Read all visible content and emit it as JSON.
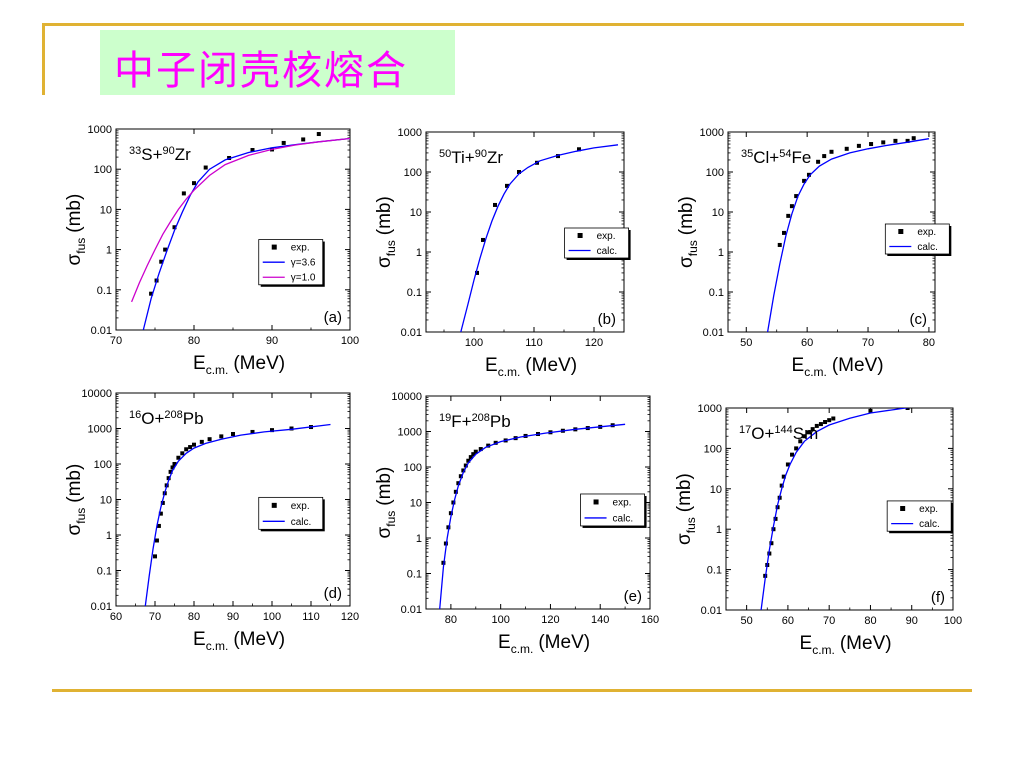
{
  "slide": {
    "title": "中子闭壳核熔合",
    "accent_color": "#e0b233",
    "title_bg": "#ccffcc",
    "title_color": "#ff00ff"
  },
  "chart_data": [
    {
      "type": "scatter",
      "panel": "(a)",
      "reaction": {
        "a1": "33",
        "s1": "S+",
        "a2": "90",
        "s2": "Zr"
      },
      "xlabel": "E",
      "xlabel_sub": "c.m.",
      "xlabel_unit": "(MeV)",
      "ylabel": "σ",
      "ylabel_sub": "fus",
      "ylabel_unit": "(mb)",
      "xlim": [
        70,
        100
      ],
      "xticks": [
        "70",
        "80",
        "90",
        "100"
      ],
      "ylim": [
        0.01,
        1000
      ],
      "log_y": true,
      "yticks": [
        "0.01",
        "0.1",
        "1",
        "10",
        "100",
        "1000"
      ],
      "legend": [
        "exp.",
        "γ=3.6",
        "γ=1.0"
      ],
      "legend_position": "right",
      "series": [
        {
          "name": "exp.",
          "kind": "points",
          "x": [
            74.5,
            75.2,
            75.8,
            76.3,
            77.5,
            78.7,
            80.0,
            81.5,
            84.5,
            87.5,
            90.0,
            91.5,
            94.0,
            96.0
          ],
          "y": [
            0.08,
            0.17,
            0.5,
            1.0,
            3.6,
            25,
            45,
            110,
            190,
            300,
            310,
            450,
            550,
            750
          ]
        },
        {
          "name": "γ=3.6",
          "kind": "line",
          "color": "#0000ff",
          "x": [
            73.5,
            74.5,
            75.5,
            76.5,
            77.5,
            78.5,
            79.5,
            80.5,
            82,
            84,
            87,
            90,
            93,
            96,
            100
          ],
          "y": [
            0.01,
            0.06,
            0.25,
            0.9,
            3,
            8.5,
            22,
            48,
            100,
            170,
            260,
            340,
            410,
            480,
            580
          ]
        },
        {
          "name": "γ=1.0",
          "kind": "line",
          "color": "#cc00cc",
          "x": [
            72,
            73,
            74,
            75,
            76,
            77,
            78,
            79,
            80,
            82,
            84,
            87,
            90,
            93,
            96,
            100
          ],
          "y": [
            0.05,
            0.15,
            0.4,
            1.0,
            2.4,
            5,
            10,
            18,
            30,
            70,
            130,
            220,
            310,
            400,
            480,
            580
          ]
        }
      ]
    },
    {
      "type": "scatter",
      "panel": "(b)",
      "reaction": {
        "a1": "50",
        "s1": "Ti+",
        "a2": "90",
        "s2": "Zr"
      },
      "xlabel": "E",
      "xlabel_sub": "c.m.",
      "xlabel_unit": "(MeV)",
      "ylabel": "σ",
      "ylabel_sub": "fus",
      "ylabel_unit": "(mb)",
      "xlim": [
        92,
        125
      ],
      "xticks": [
        "100",
        "110",
        "120"
      ],
      "ylim": [
        0.01,
        1000
      ],
      "log_y": true,
      "yticks": [
        "0.01",
        "0.1",
        "1",
        "10",
        "100",
        "1000"
      ],
      "legend": [
        "exp.",
        "calc."
      ],
      "legend_position": "right",
      "series": [
        {
          "name": "exp.",
          "kind": "points",
          "x": [
            100.5,
            101.5,
            103.5,
            105.5,
            107.5,
            110.5,
            114.0,
            117.5
          ],
          "y": [
            0.3,
            2.0,
            15,
            45,
            100,
            170,
            250,
            370
          ]
        },
        {
          "name": "calc.",
          "kind": "line",
          "color": "#0000ff",
          "x": [
            97.8,
            99,
            100,
            101,
            102,
            103,
            104,
            105,
            106,
            107.5,
            109,
            111,
            114,
            117,
            120,
            124
          ],
          "y": [
            0.01,
            0.05,
            0.2,
            0.7,
            2.2,
            6,
            14,
            28,
            50,
            90,
            130,
            190,
            260,
            330,
            400,
            480
          ]
        }
      ]
    },
    {
      "type": "scatter",
      "panel": "(c)",
      "reaction": {
        "a1": "35",
        "s1": "Cl+",
        "a2": "54",
        "s2": "Fe"
      },
      "xlabel": "E",
      "xlabel_sub": "c.m.",
      "xlabel_unit": "(MeV)",
      "ylabel": "σ",
      "ylabel_sub": "fus",
      "ylabel_unit": "(mb)",
      "xlim": [
        47,
        81
      ],
      "xticks": [
        "50",
        "60",
        "70",
        "80"
      ],
      "ylim": [
        0.01,
        1000
      ],
      "log_y": true,
      "yticks": [
        "0.01",
        "0.1",
        "1",
        "10",
        "100",
        "1000"
      ],
      "legend": [
        "exp.",
        "calc."
      ],
      "legend_position": "right",
      "series": [
        {
          "name": "exp.",
          "kind": "points",
          "x": [
            55.5,
            56.2,
            56.9,
            57.5,
            58.2,
            59.5,
            60.3,
            61.8,
            62.8,
            64.0,
            66.5,
            68.5,
            70.5,
            72.5,
            74.5,
            76.5,
            77.5
          ],
          "y": [
            1.5,
            3,
            8,
            14,
            25,
            60,
            85,
            180,
            250,
            320,
            380,
            450,
            500,
            550,
            600,
            600,
            700
          ]
        },
        {
          "name": "calc.",
          "kind": "line",
          "color": "#0000ff",
          "x": [
            53.5,
            54.5,
            55.5,
            56.5,
            57.5,
            58.5,
            59.5,
            60.5,
            62,
            64,
            67,
            70,
            73,
            76,
            80
          ],
          "y": [
            0.01,
            0.08,
            0.5,
            2.5,
            9,
            25,
            50,
            85,
            140,
            210,
            300,
            380,
            460,
            540,
            680
          ]
        }
      ]
    },
    {
      "type": "scatter",
      "panel": "(d)",
      "reaction": {
        "a1": "16",
        "s1": "O+",
        "a2": "208",
        "s2": "Pb"
      },
      "xlabel": "E",
      "xlabel_sub": "c.m.",
      "xlabel_unit": "(MeV)",
      "ylabel": "σ",
      "ylabel_sub": "fus",
      "ylabel_unit": "(mb)",
      "xlim": [
        60,
        120
      ],
      "xticks": [
        "60",
        "70",
        "80",
        "90",
        "100",
        "110",
        "120"
      ],
      "ylim": [
        0.01,
        10000
      ],
      "log_y": true,
      "yticks": [
        "0.01",
        "0.1",
        "1",
        "10",
        "100",
        "1000",
        "10000"
      ],
      "legend": [
        "exp.",
        "calc."
      ],
      "legend_position": "right",
      "series": [
        {
          "name": "exp.",
          "kind": "points",
          "x": [
            70,
            70.5,
            71,
            71.5,
            72,
            72.5,
            73,
            73.5,
            74,
            74.5,
            75,
            76,
            77,
            78,
            79,
            80,
            82,
            84,
            87,
            90,
            95,
            100,
            105,
            110
          ],
          "y": [
            0.25,
            0.7,
            1.8,
            4,
            8,
            15,
            25,
            40,
            60,
            80,
            100,
            150,
            200,
            260,
            300,
            350,
            420,
            500,
            600,
            700,
            800,
            900,
            1000,
            1100
          ]
        },
        {
          "name": "calc.",
          "kind": "line",
          "color": "#0000ff",
          "x": [
            67.5,
            68.5,
            69.5,
            70.5,
            71.5,
            72.5,
            73.5,
            74.5,
            76,
            78,
            80,
            83,
            87,
            92,
            98,
            105,
            115
          ],
          "y": [
            0.01,
            0.07,
            0.4,
            1.8,
            6,
            16,
            35,
            65,
            120,
            200,
            280,
            380,
            500,
            650,
            800,
            950,
            1300
          ]
        }
      ]
    },
    {
      "type": "scatter",
      "panel": "(e)",
      "reaction": {
        "a1": "19",
        "s1": "F+",
        "a2": "208",
        "s2": "Pb"
      },
      "xlabel": "E",
      "xlabel_sub": "c.m.",
      "xlabel_unit": "(MeV)",
      "ylabel": "σ",
      "ylabel_sub": "fus",
      "ylabel_unit": "(mb)",
      "xlim": [
        70,
        160
      ],
      "xticks": [
        "80",
        "100",
        "120",
        "140",
        "160"
      ],
      "ylim": [
        0.01,
        10000
      ],
      "log_y": true,
      "yticks": [
        "0.01",
        "0.1",
        "1",
        "10",
        "100",
        "1000",
        "10000"
      ],
      "legend": [
        "exp.",
        "calc."
      ],
      "legend_position": "right",
      "series": [
        {
          "name": "exp.",
          "kind": "points",
          "x": [
            77,
            78,
            79,
            80,
            81,
            82,
            83,
            84,
            85,
            86,
            87,
            88,
            89,
            90,
            92,
            95,
            98,
            102,
            106,
            110,
            115,
            120,
            125,
            130,
            135,
            140,
            145
          ],
          "y": [
            0.2,
            0.7,
            2,
            5,
            10,
            20,
            35,
            55,
            80,
            110,
            150,
            190,
            230,
            270,
            320,
            400,
            480,
            560,
            650,
            750,
            850,
            950,
            1050,
            1150,
            1250,
            1350,
            1500
          ]
        },
        {
          "name": "calc.",
          "kind": "line",
          "color": "#0000ff",
          "x": [
            75.5,
            77,
            78.5,
            80,
            81.5,
            83,
            85,
            87,
            90,
            94,
            100,
            108,
            118,
            130,
            150
          ],
          "y": [
            0.01,
            0.15,
            1,
            4,
            12,
            30,
            70,
            130,
            230,
            360,
            520,
            700,
            900,
            1150,
            1600
          ]
        }
      ]
    },
    {
      "type": "scatter",
      "panel": "(f)",
      "reaction": {
        "a1": "17",
        "s1": "O+",
        "a2": "144",
        "s2": "Sm"
      },
      "xlabel": "E",
      "xlabel_sub": "c.m.",
      "xlabel_unit": "(MeV)",
      "ylabel": "σ",
      "ylabel_sub": "fus",
      "ylabel_unit": "(mb)",
      "xlim": [
        45,
        100
      ],
      "xticks": [
        "50",
        "60",
        "70",
        "80",
        "90",
        "100"
      ],
      "ylim": [
        0.01,
        1000
      ],
      "log_y": true,
      "yticks": [
        "0.01",
        "0.1",
        "1",
        "10",
        "100",
        "1000"
      ],
      "legend": [
        "exp.",
        "calc."
      ],
      "legend_position": "right",
      "series": [
        {
          "name": "exp.",
          "kind": "points",
          "x": [
            54.5,
            55,
            55.5,
            56,
            56.5,
            57,
            57.5,
            58,
            58.5,
            59,
            60,
            61,
            62,
            63,
            64,
            65,
            66,
            67,
            68,
            69,
            70,
            71,
            80,
            89
          ],
          "y": [
            0.07,
            0.13,
            0.25,
            0.45,
            1,
            1.8,
            3.5,
            6,
            12,
            20,
            40,
            70,
            100,
            150,
            200,
            250,
            300,
            360,
            400,
            450,
            500,
            550,
            850,
            1000
          ]
        },
        {
          "name": "calc.",
          "kind": "line",
          "color": "#0000ff",
          "x": [
            53.5,
            54.5,
            55.5,
            56.5,
            57.5,
            58.5,
            59.5,
            60.5,
            62,
            64,
            67,
            70,
            75,
            80,
            90,
            98
          ],
          "y": [
            0.01,
            0.06,
            0.3,
            1.2,
            4,
            10,
            22,
            40,
            80,
            150,
            260,
            380,
            560,
            750,
            1050,
            1300
          ]
        }
      ]
    }
  ]
}
